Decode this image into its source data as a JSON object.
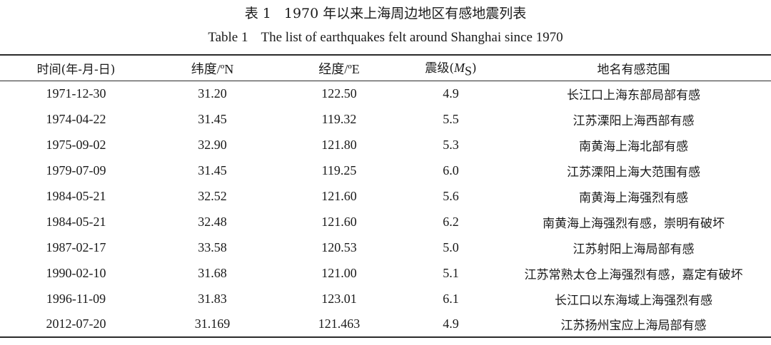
{
  "caption": {
    "cn_label": "表 1",
    "cn_title": "1970 年以来上海周边地区有感地震列表",
    "en_label": "Table 1",
    "en_title": "The list of earthquakes felt around Shanghai since 1970"
  },
  "table": {
    "headers": {
      "date": "时间(年-月-日)",
      "lat": "纬度/ºN",
      "lon": "经度/ºE",
      "mag_prefix": "震级(",
      "mag_symbol": "M",
      "mag_sub": "S",
      "mag_suffix": ")",
      "place": "地名有感范围"
    },
    "rows": [
      {
        "date": "1971-12-30",
        "lat": "31.20",
        "lon": "122.50",
        "mag": "4.9",
        "place": "长江口上海东部局部有感"
      },
      {
        "date": "1974-04-22",
        "lat": "31.45",
        "lon": "119.32",
        "mag": "5.5",
        "place": "江苏溧阳上海西部有感"
      },
      {
        "date": "1975-09-02",
        "lat": "32.90",
        "lon": "121.80",
        "mag": "5.3",
        "place": "南黄海上海北部有感"
      },
      {
        "date": "1979-07-09",
        "lat": "31.45",
        "lon": "119.25",
        "mag": "6.0",
        "place": "江苏溧阳上海大范围有感"
      },
      {
        "date": "1984-05-21",
        "lat": "32.52",
        "lon": "121.60",
        "mag": "5.6",
        "place": "南黄海上海强烈有感"
      },
      {
        "date": "1984-05-21",
        "lat": "32.48",
        "lon": "121.60",
        "mag": "6.2",
        "place": "南黄海上海强烈有感，崇明有破坏"
      },
      {
        "date": "1987-02-17",
        "lat": "33.58",
        "lon": "120.53",
        "mag": "5.0",
        "place": "江苏射阳上海局部有感"
      },
      {
        "date": "1990-02-10",
        "lat": "31.68",
        "lon": "121.00",
        "mag": "5.1",
        "place": "江苏常熟太仓上海强烈有感，嘉定有破坏"
      },
      {
        "date": "1996-11-09",
        "lat": "31.83",
        "lon": "123.01",
        "mag": "6.1",
        "place": "长江口以东海域上海强烈有感"
      },
      {
        "date": "2012-07-20",
        "lat": "31.169",
        "lon": "121.463",
        "mag": "4.9",
        "place": "江苏扬州宝应上海局部有感"
      }
    ]
  }
}
